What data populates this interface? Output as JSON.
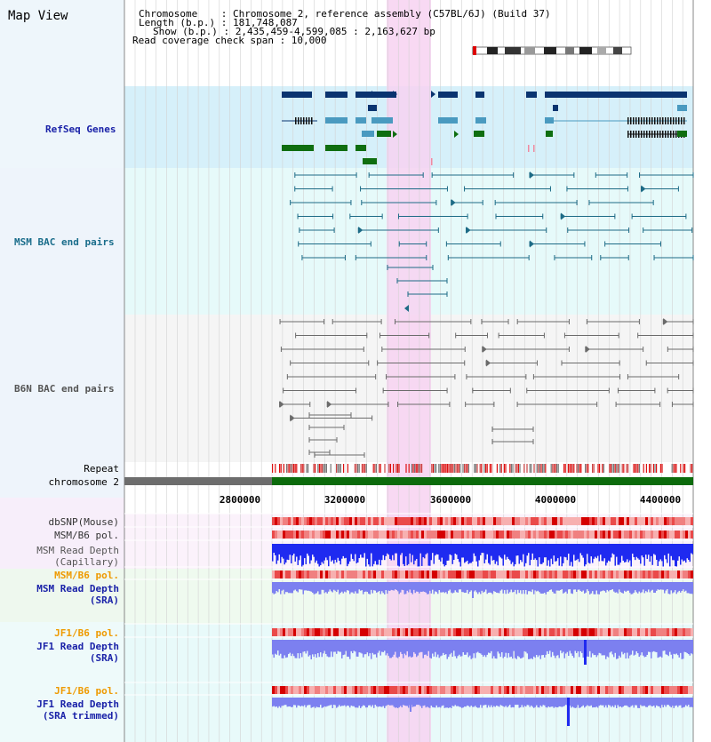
{
  "view_title": "Map View",
  "info": {
    "chromosome": "Chromosome    : Chromosome 2, reference assembly (C57BL/6J) (Build 37)",
    "length": "Length (b.p.) : 181,748,087",
    "show": "Show (b.p.) : 2,435,459-4,599,085 : 2,163,627 bp",
    "coverage": "Read coverage check span : 10,000"
  },
  "tracks": {
    "refseq": "RefSeq Genes",
    "msm_bac": "MSM BAC end pairs",
    "b6n_bac": "B6N BAC end pairs",
    "repeat": "Repeat",
    "chromosome": "chromosome 2",
    "dbsnp": "dbSNP(Mouse)",
    "msm_b6_pol": "MSM/B6 pol.",
    "msm_depth_cap_1": "MSM Read Depth",
    "msm_depth_cap_2": "(Capillary)",
    "msm_b6_pol_2": "MSM/B6 pol.",
    "msm_depth_sra_1": "MSM Read Depth",
    "msm_depth_sra_2": "(SRA)",
    "jf1_b6_pol": "JF1/B6 pol.",
    "jf1_depth_sra_1": "JF1 Read Depth",
    "jf1_depth_sra_2": "(SRA)",
    "jf1_b6_pol_2": "JF1/B6 pol.",
    "jf1_depth_trim_1": "JF1 Read Depth",
    "jf1_depth_trim_2": "(SRA trimmed)"
  },
  "axis_ticks": [
    "2800000",
    "3200000",
    "3600000",
    "4000000",
    "4400000"
  ],
  "colors": {
    "refseq_bg": "#d6f0fa",
    "bac_bg": "#e6fafa",
    "b6n_bg": "#f5f5f5",
    "highlight": "#f7d2f1",
    "gene_dark": "#0a3470",
    "gene_mid": "#4a9ac0",
    "gene_green": "#0f6e10",
    "bac_line": "#1d6b86",
    "b6n_line": "#6b6b6b",
    "chrom_grey": "#6d6d6d",
    "chrom_green": "#0c6b0c",
    "snp_red": "#e84040",
    "depth_blue": "#1f2af0",
    "depth_light": "#7c80f0",
    "label_orange": "#ee9a00",
    "label_navy": "#1a22a8",
    "label_teal": "#1a6d8b",
    "label_grey": "#555555"
  }
}
